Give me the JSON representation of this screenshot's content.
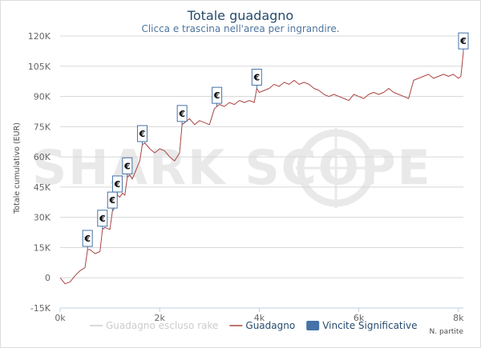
{
  "chart_data": {
    "type": "line",
    "title": "Totale guadagno",
    "subtitle": "Clicca e trascina nell'area per ingrandire.",
    "ylabel": "Totale cumulativo (EUR)",
    "xlabel": "N. partite",
    "xlim": [
      0,
      8100
    ],
    "ylim": [
      -15000,
      120000
    ],
    "x_ticks": [
      0,
      2000,
      4000,
      6000,
      8000
    ],
    "x_tick_labels": [
      "0k",
      "2k",
      "4k",
      "6k",
      "8k"
    ],
    "y_ticks": [
      -15000,
      0,
      15000,
      30000,
      45000,
      60000,
      75000,
      90000,
      105000,
      120000
    ],
    "y_tick_labels": [
      "-15K",
      "0",
      "15K",
      "30K",
      "45K",
      "60K",
      "75K",
      "90K",
      "105K",
      "120K"
    ],
    "grid": "horizontal",
    "legend_position": "bottom",
    "legend": [
      {
        "label": "Guadagno escluso rake",
        "color": "#cccccc",
        "kind": "line",
        "hidden": true
      },
      {
        "label": "Guadagno",
        "color": "#aa4643",
        "kind": "line"
      },
      {
        "label": "Vincite Significative",
        "color": "#4572a7",
        "kind": "box"
      }
    ],
    "series": [
      {
        "name": "Guadagno",
        "color": "#aa4643",
        "x": [
          0,
          100,
          200,
          300,
          400,
          500,
          550,
          600,
          700,
          800,
          850,
          900,
          1000,
          1050,
          1100,
          1150,
          1200,
          1250,
          1300,
          1350,
          1400,
          1450,
          1500,
          1600,
          1650,
          1700,
          1800,
          1900,
          2000,
          2100,
          2200,
          2300,
          2400,
          2450,
          2500,
          2600,
          2700,
          2800,
          2900,
          3000,
          3100,
          3150,
          3200,
          3300,
          3400,
          3500,
          3600,
          3700,
          3800,
          3900,
          3950,
          4000,
          4100,
          4200,
          4300,
          4400,
          4500,
          4600,
          4700,
          4800,
          4900,
          5000,
          5100,
          5200,
          5300,
          5400,
          5500,
          5600,
          5700,
          5800,
          5900,
          6000,
          6100,
          6200,
          6300,
          6400,
          6500,
          6600,
          6700,
          6800,
          6900,
          7000,
          7100,
          7200,
          7300,
          7400,
          7500,
          7600,
          7700,
          7800,
          7900,
          8000,
          8050,
          8100
        ],
        "y": [
          0,
          -3000,
          -2000,
          1000,
          3500,
          5000,
          14000,
          14000,
          12000,
          13000,
          24000,
          25000,
          24000,
          33000,
          35000,
          41000,
          40000,
          42000,
          41000,
          50000,
          51000,
          49000,
          52000,
          58000,
          66000,
          67000,
          64000,
          62000,
          64000,
          63000,
          60000,
          58000,
          62000,
          76000,
          77000,
          79000,
          76000,
          78000,
          77000,
          76000,
          84000,
          85000,
          86000,
          85000,
          87000,
          86000,
          88000,
          87000,
          88000,
          87000,
          94000,
          92000,
          93000,
          94000,
          96000,
          95000,
          97000,
          96000,
          98000,
          96000,
          97000,
          96000,
          94000,
          93000,
          91000,
          90000,
          91000,
          90000,
          89000,
          88000,
          91000,
          90000,
          89000,
          91000,
          92000,
          91000,
          92000,
          94000,
          92000,
          91000,
          90000,
          89000,
          98000,
          99000,
          100000,
          101000,
          99000,
          100000,
          101000,
          100000,
          101000,
          99000,
          100000,
          112000
        ]
      }
    ],
    "significant_wins": [
      {
        "x": 550,
        "y": 14000,
        "label": "€"
      },
      {
        "x": 850,
        "y": 24000,
        "label": "€"
      },
      {
        "x": 1050,
        "y": 33000,
        "label": "€"
      },
      {
        "x": 1150,
        "y": 41000,
        "label": "€"
      },
      {
        "x": 1350,
        "y": 50000,
        "label": "€"
      },
      {
        "x": 1650,
        "y": 66000,
        "label": "€"
      },
      {
        "x": 2450,
        "y": 76000,
        "label": "€"
      },
      {
        "x": 3150,
        "y": 85000,
        "label": "€"
      },
      {
        "x": 3950,
        "y": 94000,
        "label": "€"
      },
      {
        "x": 8100,
        "y": 112000,
        "label": "€"
      }
    ],
    "watermark": "SHARK SCOPE"
  }
}
